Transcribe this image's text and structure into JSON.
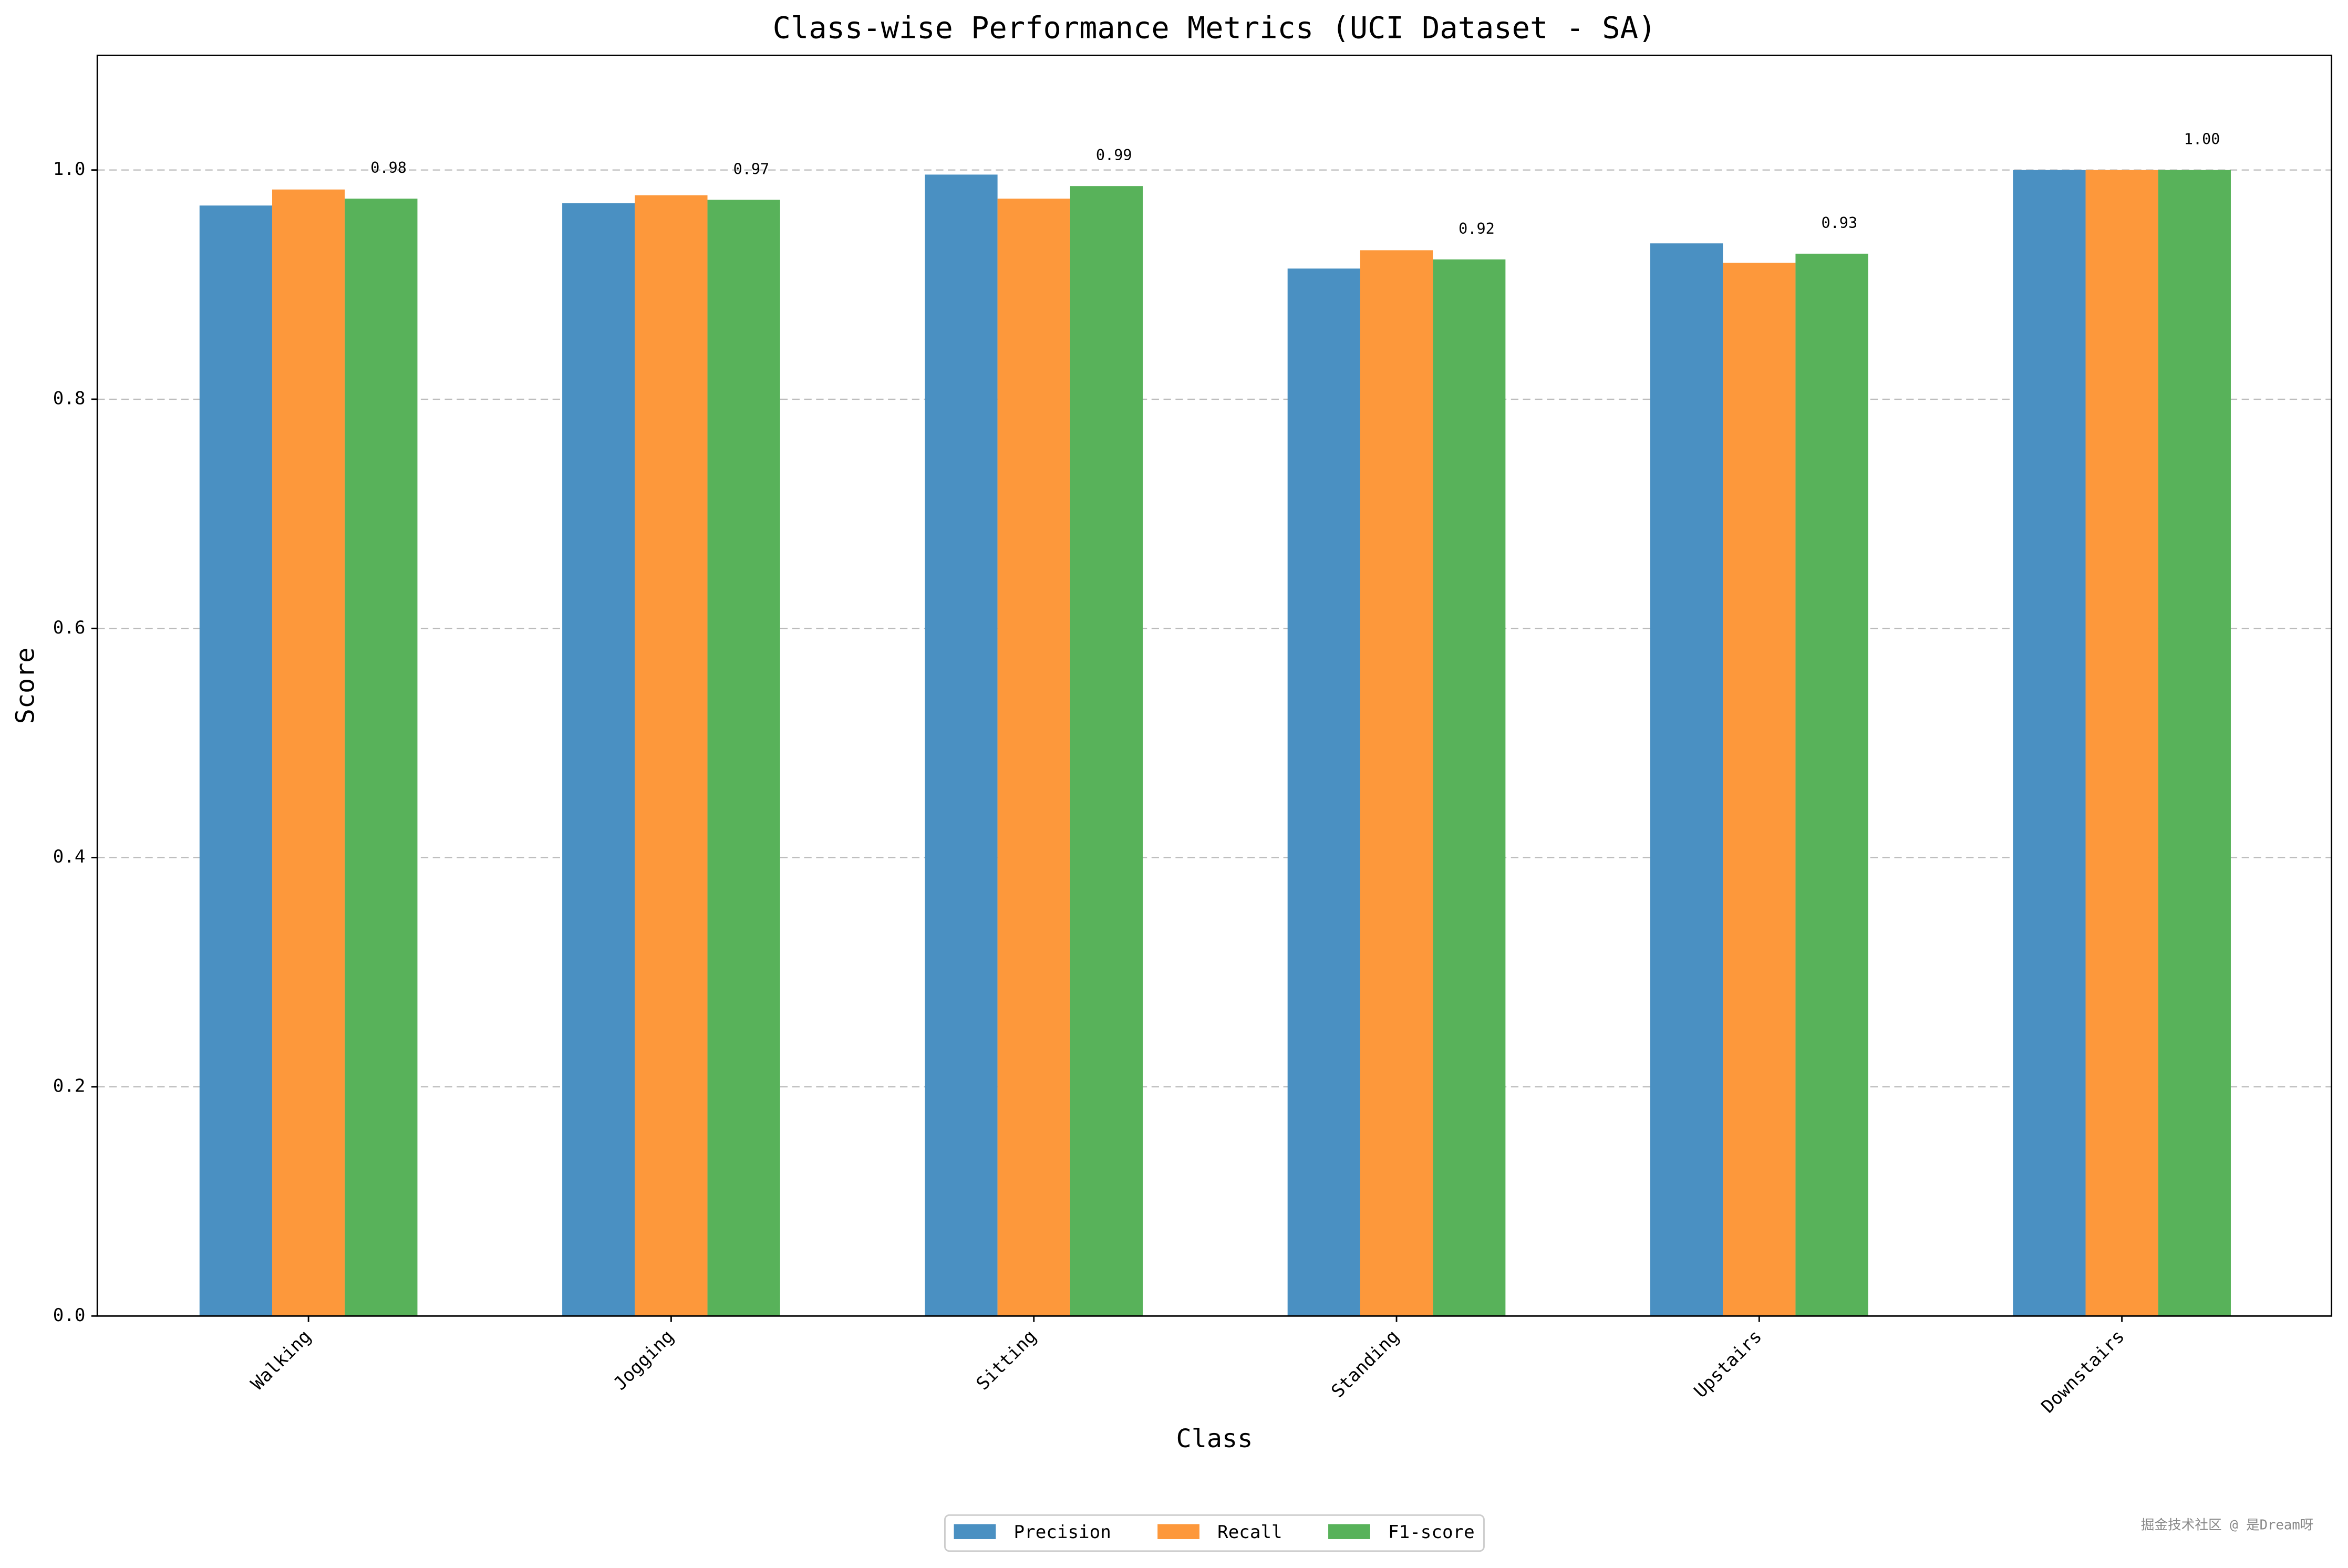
{
  "chart_data": {
    "type": "bar",
    "title": "Class-wise Performance Metrics (UCI Dataset - SA)",
    "x_label": "Class",
    "y_label": "Score",
    "categories": [
      "Walking",
      "Jogging",
      "Sitting",
      "Standing",
      "Upstairs",
      "Downstairs"
    ],
    "series": [
      {
        "name": "Precision",
        "color": "#4a90c2",
        "values": [
          0.969,
          0.971,
          0.996,
          0.914,
          0.936,
          1.0
        ]
      },
      {
        "name": "Recall",
        "color": "#fd983b",
        "values": [
          0.983,
          0.978,
          0.975,
          0.93,
          0.919,
          1.0
        ]
      },
      {
        "name": "F1-score",
        "color": "#58b25a",
        "values": [
          0.975,
          0.974,
          0.986,
          0.922,
          0.927,
          1.0
        ],
        "value_labels": [
          "0.98",
          "0.97",
          "0.99",
          "0.92",
          "0.93",
          "1.00"
        ]
      }
    ],
    "ylim": [
      0,
      1.1
    ],
    "yticks": [
      {
        "value": 0,
        "label": "0.0"
      },
      0.2,
      0.4,
      0.6,
      0.8,
      {
        "value": 1,
        "label": "1.0"
      }
    ],
    "grid": true,
    "legend": "below",
    "watermark": "掘金技术社区 @ 是Dream呀"
  }
}
